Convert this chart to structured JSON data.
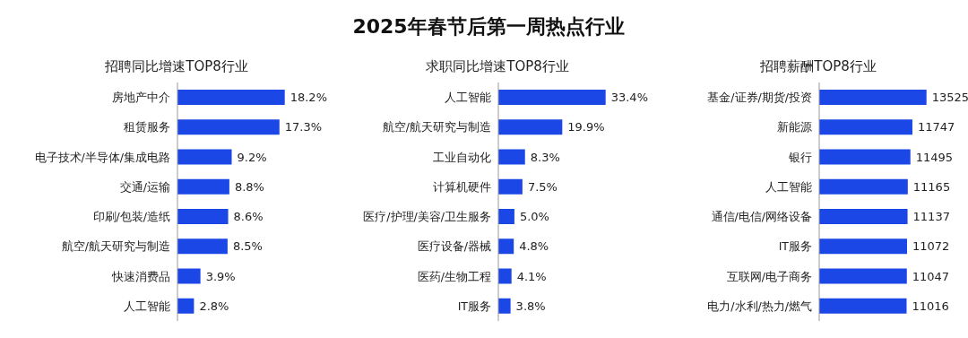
{
  "chart_data": [
    {
      "type": "bar",
      "orientation": "horizontal",
      "subtitle": "招聘同比增速TOP8行业",
      "color": "#1a47e6",
      "categories": [
        "房地产中介",
        "租赁服务",
        "电子技术/半导体/集成电路",
        "交通/运输",
        "印刷/包装/造纸",
        "航空/航天研究与制造",
        "快速消费品",
        "人工智能"
      ],
      "values": [
        18.2,
        17.3,
        9.2,
        8.8,
        8.6,
        8.5,
        3.9,
        2.8
      ],
      "value_labels": [
        "18.2%",
        "17.3%",
        "9.2%",
        "8.8%",
        "8.6%",
        "8.5%",
        "3.9%",
        "2.8%"
      ]
    },
    {
      "type": "bar",
      "orientation": "horizontal",
      "title": "2025年春节后第一周热点行业",
      "subtitle": "求职同比增速TOP8行业",
      "color": "#1a47e6",
      "categories": [
        "人工智能",
        "航空/航天研究与制造",
        "工业自动化",
        "计算机硬件",
        "医疗/护理/美容/卫生服务",
        "医疗设备/器械",
        "医药/生物工程",
        "IT服务"
      ],
      "values": [
        33.4,
        19.9,
        8.3,
        7.5,
        5.0,
        4.8,
        4.1,
        3.8
      ],
      "value_labels": [
        "33.4%",
        "19.9%",
        "8.3%",
        "7.5%",
        "5.0%",
        "4.8%",
        "4.1%",
        "3.8%"
      ]
    },
    {
      "type": "bar",
      "orientation": "horizontal",
      "subtitle": "招聘薪酬TOP8行业",
      "color": "#1a47e6",
      "categories": [
        "基金/证券/期货/投资",
        "新能源",
        "银行",
        "人工智能",
        "通信/电信/网络设备",
        "IT服务",
        "互联网/电子商务",
        "电力/水利/热力/燃气"
      ],
      "values": [
        13525,
        11747,
        11495,
        11165,
        11137,
        11072,
        11047,
        11016
      ],
      "data_labels": true
    }
  ]
}
